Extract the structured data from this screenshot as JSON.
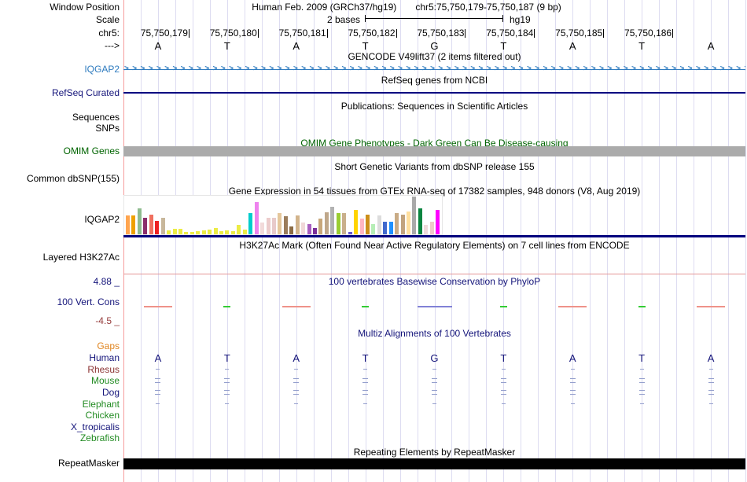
{
  "header": {
    "window_position_label": "Window Position",
    "assembly": "Human Feb. 2009 (GRCh37/hg19)",
    "position": "chr5:75,750,179-75,750,187 (9 bp)",
    "scale_label": "Scale",
    "scale_value": "2 bases",
    "scale_assembly": "hg19",
    "chrom_label": "chr5:",
    "strand_label": "--->",
    "coordinates": [
      "75,750,179",
      "75,750,180",
      "75,750,181",
      "75,750,182",
      "75,750,183",
      "75,750,184",
      "75,750,185",
      "75,750,186"
    ],
    "bases": [
      "A",
      "T",
      "A",
      "T",
      "G",
      "T",
      "A",
      "T",
      "A"
    ]
  },
  "tracks": {
    "gencode": {
      "title": "GENCODE V49lift37 (2 items filtered out)",
      "item_label": "IQGAP2",
      "item_color": "#2e7bbf"
    },
    "refseq": {
      "title": "RefSeq genes from NCBI",
      "label": "RefSeq Curated",
      "line_color": "#000080"
    },
    "publications": {
      "title": "Publications: Sequences in Scientific Articles",
      "label_line1": "Sequences",
      "label_line2": "SNPs"
    },
    "omim": {
      "title": "OMIM Gene Phenotypes - Dark Green Can Be Disease-causing",
      "label": "OMIM Genes",
      "text_color": "#006400",
      "bar_color": "#ababab"
    },
    "dbsnp": {
      "title": "Short Genetic Variants from dbSNP release 155",
      "label": "Common dbSNP(155)"
    },
    "gtex": {
      "title": "Gene Expression in 54 tissues from GTEx RNA-seq of 17382 samples, 948 donors (V8, Aug 2019)",
      "label": "IQGAP2",
      "bars": [
        {
          "c": "#ffa54f",
          "h": 24
        },
        {
          "c": "#eea000",
          "h": 24
        },
        {
          "c": "#8fbc8f",
          "h": 33
        },
        {
          "c": "#8b2e6b",
          "h": 21
        },
        {
          "c": "#f0705f",
          "h": 25
        },
        {
          "c": "#ee2222",
          "h": 17
        },
        {
          "c": "#c8b79b",
          "h": 21
        },
        {
          "c": "#ecec45",
          "h": 5
        },
        {
          "c": "#ecec45",
          "h": 7
        },
        {
          "c": "#ecec45",
          "h": 7
        },
        {
          "c": "#ecec45",
          "h": 3
        },
        {
          "c": "#ecec45",
          "h": 3
        },
        {
          "c": "#ecec45",
          "h": 4
        },
        {
          "c": "#ecec45",
          "h": 5
        },
        {
          "c": "#ecec45",
          "h": 6
        },
        {
          "c": "#ecec45",
          "h": 8
        },
        {
          "c": "#ecec45",
          "h": 4
        },
        {
          "c": "#ecec45",
          "h": 5
        },
        {
          "c": "#ecec45",
          "h": 4
        },
        {
          "c": "#ecec45",
          "h": 12
        },
        {
          "c": "#ecec45",
          "h": 6
        },
        {
          "c": "#00cdcd",
          "h": 27
        },
        {
          "c": "#ee82ee",
          "h": 41
        },
        {
          "c": "#f2dada",
          "h": 15
        },
        {
          "c": "#eccccc",
          "h": 21
        },
        {
          "c": "#e8caca",
          "h": 21
        },
        {
          "c": "#e5c79b",
          "h": 27
        },
        {
          "c": "#9b7d5c",
          "h": 23
        },
        {
          "c": "#8b6b44",
          "h": 10
        },
        {
          "c": "#d2b48c",
          "h": 24
        },
        {
          "c": "#f0d8d8",
          "h": 15
        },
        {
          "c": "#a85ec0",
          "h": 13
        },
        {
          "c": "#7a2f99",
          "h": 8
        },
        {
          "c": "#c8a87c",
          "h": 20
        },
        {
          "c": "#bfa78a",
          "h": 28
        },
        {
          "c": "#b2b2b2",
          "h": 35
        },
        {
          "c": "#9acd32",
          "h": 27
        },
        {
          "c": "#c9af8b",
          "h": 27
        },
        {
          "c": "#6a5acd",
          "h": 3
        },
        {
          "c": "#ffd400",
          "h": 31
        },
        {
          "c": "#ffb6c1",
          "h": 20
        },
        {
          "c": "#cc8f1a",
          "h": 25
        },
        {
          "c": "#b6eeb6",
          "h": 13
        },
        {
          "c": "#dcdcdc",
          "h": 24
        },
        {
          "c": "#4169cd",
          "h": 16
        },
        {
          "c": "#1e90ff",
          "h": 16
        },
        {
          "c": "#c9ab85",
          "h": 27
        },
        {
          "c": "#c2a37e",
          "h": 25
        },
        {
          "c": "#ffdf9e",
          "h": 29
        },
        {
          "c": "#a9a9a9",
          "h": 48
        },
        {
          "c": "#0a8540",
          "h": 33
        },
        {
          "c": "#eedada",
          "h": 12
        },
        {
          "c": "#eec9c9",
          "h": 16
        },
        {
          "c": "#ff00ff",
          "h": 31
        }
      ]
    },
    "h3k27ac": {
      "title": "H3K27Ac Mark (Often Found Near Active Regulatory Elements) on 7 cell lines from ENCODE",
      "label": "Layered H3K27Ac"
    },
    "phylop": {
      "title": "100 vertebrates Basewise Conservation by PhyloP",
      "label": "100 Vert. Cons",
      "max": "4.88 _",
      "min": "-4.5 _",
      "marks": [
        {
          "w": 36,
          "c": "#ef9289"
        },
        {
          "w": 9,
          "c": "#33cc33"
        },
        {
          "w": 36,
          "c": "#ef9289"
        },
        {
          "w": 9,
          "c": "#33cc33"
        },
        {
          "w": 44,
          "c": "#8181d6"
        },
        {
          "w": 9,
          "c": "#33cc33"
        },
        {
          "w": 36,
          "c": "#ef9289"
        },
        {
          "w": 9,
          "c": "#33cc33"
        },
        {
          "w": 36,
          "c": "#ef9289"
        }
      ]
    },
    "multiz": {
      "title": "Multiz Alignments of 100 Vertebrates",
      "gaps_label": "Gaps",
      "human_bases": [
        "A",
        "T",
        "A",
        "T",
        "G",
        "T",
        "A",
        "T",
        "A"
      ],
      "species": [
        {
          "name": "Human",
          "color": "#14147a",
          "glyph": "bases"
        },
        {
          "name": "Rhesus",
          "color": "#8b3333",
          "glyph": "single"
        },
        {
          "name": "Mouse",
          "color": "#228b22",
          "glyph": "double"
        },
        {
          "name": "Dog",
          "color": "#14147a",
          "glyph": "double"
        },
        {
          "name": "Elephant",
          "color": "#228b22",
          "glyph": "single"
        },
        {
          "name": "Chicken",
          "color": "#228b22",
          "glyph": "none"
        },
        {
          "name": "X_tropicalis",
          "color": "#14147a",
          "glyph": "none"
        },
        {
          "name": "Zebrafish",
          "color": "#228b22",
          "glyph": "none"
        }
      ]
    },
    "repeatmasker": {
      "title": "Repeating Elements by RepeatMasker",
      "label": "RepeatMasker",
      "bar_color": "#000000"
    }
  }
}
